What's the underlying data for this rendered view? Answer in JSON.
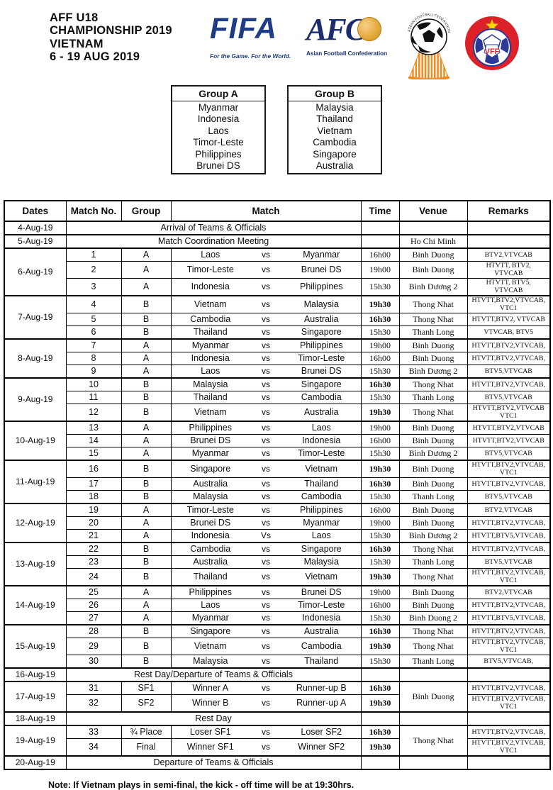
{
  "header": {
    "title_lines": [
      "AFF U18",
      "CHAMPIONSHIP 2019",
      "VIETNAM",
      "6 - 19 AUG 2019"
    ],
    "logos": {
      "fifa": {
        "name": "FIFA",
        "tagline": "For the Game. For the World.",
        "color": "#1d3c85"
      },
      "afc": {
        "name": "AFC",
        "tagline": "Asian Football Confederation",
        "color": "#1b2d6e",
        "gold": "#e3a93c"
      },
      "aff": {
        "arc_text": "ASEAN FOOTBALL FEDERATION",
        "orange": "#ee8a1e"
      },
      "vff": {
        "name": "VFF",
        "red": "#dd2128",
        "blue": "#2b3a97",
        "star": "#ffd400"
      }
    }
  },
  "groups": [
    {
      "title": "Group A",
      "teams": [
        "Myanmar",
        "Indonesia",
        "Laos",
        "Timor-Leste",
        "Philippines",
        "Brunei DS"
      ]
    },
    {
      "title": "Group B",
      "teams": [
        "Malaysia",
        "Thailand",
        "Vietnam",
        "Cambodia",
        "Singapore",
        "Australia"
      ]
    }
  ],
  "table": {
    "headers": [
      "Dates",
      "Match No.",
      "Group",
      "Match",
      "Time",
      "Venue",
      "Remarks"
    ],
    "days": [
      {
        "date": "4-Aug-19",
        "event": "Arrival of Teams & Officials",
        "venue": ""
      },
      {
        "date": "5-Aug-19",
        "event": "Match Coordination Meeting",
        "venue": "Ho Chi Minh"
      },
      {
        "date": "6-Aug-19",
        "matches": [
          {
            "no": "1",
            "group": "A",
            "home": "Laos",
            "vs": "vs",
            "away": "Myanmar",
            "time": "16h00",
            "bold": false,
            "venue": "Binh Duong",
            "remarks": "BTV2,VTVCAB"
          },
          {
            "no": "2",
            "group": "A",
            "home": "Timor-Leste",
            "vs": "vs",
            "away": "Brunei DS",
            "time": "19h00",
            "bold": false,
            "venue": "Binh Duong",
            "remarks": "HTVTT, BTV2,\nVTVCAB"
          },
          {
            "no": "3",
            "group": "A",
            "home": "Indonesia",
            "vs": "vs",
            "away": "Philippines",
            "time": "15h30",
            "bold": false,
            "venue": "Bình Dương 2",
            "remarks": "HTVTT, BTV5,\nVTVCAB"
          }
        ]
      },
      {
        "date": "7-Aug-19",
        "matches": [
          {
            "no": "4",
            "group": "B",
            "home": "Vietnam",
            "vs": "vs",
            "away": "Malaysia",
            "time": "19h30",
            "bold": true,
            "venue": "Thong Nhat",
            "remarks": "HTVTT,BTV2,VTVCAB,\nVTC1"
          },
          {
            "no": "5",
            "group": "B",
            "home": "Cambodia",
            "vs": "vs",
            "away": "Australia",
            "time": "16h30",
            "bold": true,
            "venue": "Thong Nhat",
            "remarks": "HTVTT,BTV2, VTVCAB"
          },
          {
            "no": "6",
            "group": "B",
            "home": "Thailand",
            "vs": "vs",
            "away": "Singapore",
            "time": "15h30",
            "bold": false,
            "venue": "Thanh Long",
            "remarks": "VTVCAB, BTV5"
          }
        ]
      },
      {
        "date": "8-Aug-19",
        "matches": [
          {
            "no": "7",
            "group": "A",
            "home": "Myanmar",
            "vs": "vs",
            "away": "Philippines",
            "time": "19h00",
            "bold": false,
            "venue": "Binh Duong",
            "remarks": "HTVTT,BTV2,VTVCAB,"
          },
          {
            "no": "8",
            "group": "A",
            "home": "Indonesia",
            "vs": "vs",
            "away": "Timor-Leste",
            "time": "16h00",
            "bold": false,
            "venue": "Binh Duong",
            "remarks": "HTVTT,BTV2,VTVCAB,"
          },
          {
            "no": "9",
            "group": "A",
            "home": "Laos",
            "vs": "vs",
            "away": "Brunei DS",
            "time": "15h30",
            "bold": false,
            "venue": "Bình Dương 2",
            "remarks": "BTV5,VTVCAB"
          }
        ]
      },
      {
        "date": "9-Aug-19",
        "matches": [
          {
            "no": "10",
            "group": "B",
            "home": "Malaysia",
            "vs": "vs",
            "away": "Singapore",
            "time": "16h30",
            "bold": true,
            "venue": "Thong Nhat",
            "remarks": "HTVTT,BTV2,VTVCAB,"
          },
          {
            "no": "11",
            "group": "B",
            "home": "Thailand",
            "vs": "vs",
            "away": "Cambodia",
            "time": "15h30",
            "bold": false,
            "venue": "Thanh Long",
            "remarks": "BTV5,VTVCAB"
          },
          {
            "no": "12",
            "group": "B",
            "home": "Vietnam",
            "vs": "vs",
            "away": "Australia",
            "time": "19h30",
            "bold": true,
            "venue": "Thong Nhat",
            "remarks": "HTVTT,BTV2,VTVCAB\nVTC1"
          }
        ]
      },
      {
        "date": "10-Aug-19",
        "matches": [
          {
            "no": "13",
            "group": "A",
            "home": "Philippines",
            "vs": "vs",
            "away": "Laos",
            "time": "19h00",
            "bold": false,
            "venue": "Binh Duong",
            "remarks": "HTVTT,BTV2,VTVCAB"
          },
          {
            "no": "14",
            "group": "A",
            "home": "Brunei DS",
            "vs": "vs",
            "away": "Indonesia",
            "time": "16h00",
            "bold": false,
            "venue": "Binh Duong",
            "remarks": "HTVTT,BTV2,VTVCAB"
          },
          {
            "no": "15",
            "group": "A",
            "home": "Myanmar",
            "vs": "vs",
            "away": "Timor-Leste",
            "time": "15h30",
            "bold": false,
            "venue": "Bình Dương 2",
            "remarks": "BTV5,VTVCAB"
          }
        ]
      },
      {
        "date": "11-Aug-19",
        "matches": [
          {
            "no": "16",
            "group": "B",
            "home": "Singapore",
            "vs": "vs",
            "away": "Vietnam",
            "time": "19h30",
            "bold": true,
            "venue": "Binh Duong",
            "remarks": "HTVTT,BTV2,VTVCAB,\nVTC1"
          },
          {
            "no": "17",
            "group": "B",
            "home": "Australia",
            "vs": "vs",
            "away": "Thailand",
            "time": "16h30",
            "bold": true,
            "venue": "Binh Duong",
            "remarks": "HTVTT,BTV2,VTVCAB,"
          },
          {
            "no": "18",
            "group": "B",
            "home": "Malaysia",
            "vs": "vs",
            "away": "Cambodia",
            "time": "15h30",
            "bold": false,
            "venue": "Thanh Long",
            "remarks": "BTV5,VTVCAB"
          }
        ]
      },
      {
        "date": "12-Aug-19",
        "matches": [
          {
            "no": "19",
            "group": "A",
            "home": "Timor-Leste",
            "vs": "vs",
            "away": "Philippines",
            "time": "16h00",
            "bold": false,
            "venue": "Binh Duong",
            "remarks": "BTV2,VTVCAB"
          },
          {
            "no": "20",
            "group": "A",
            "home": "Brunei DS",
            "vs": "vs",
            "away": "Myanmar",
            "time": "19h00",
            "bold": false,
            "venue": "Binh Duong",
            "remarks": "HTVTT,BTV2,VTVCAB,"
          },
          {
            "no": "21",
            "group": "A",
            "home": "Indonesia",
            "vs": "Vs",
            "away": "Laos",
            "time": "15h30",
            "bold": false,
            "venue": "Bình Dương 2",
            "remarks": "HTVTT,BTV5,VTVCAB,"
          }
        ]
      },
      {
        "date": "13-Aug-19",
        "matches": [
          {
            "no": "22",
            "group": "B",
            "home": "Cambodia",
            "vs": "vs",
            "away": "Singapore",
            "time": "16h30",
            "bold": true,
            "venue": "Thong Nhat",
            "remarks": "HTVTT,BTV2,VTVCAB,"
          },
          {
            "no": "23",
            "group": "B",
            "home": "Australia",
            "vs": "vs",
            "away": "Malaysia",
            "time": "15h30",
            "bold": false,
            "venue": "Thanh Long",
            "remarks": "BTV5,VTVCAB"
          },
          {
            "no": "24",
            "group": "B",
            "home": "Thailand",
            "vs": "vs",
            "away": "Vietnam",
            "time": "19h30",
            "bold": true,
            "venue": "Thong Nhat",
            "remarks": "HTVTT,BTV2,VTVCAB,\nVTC1"
          }
        ]
      },
      {
        "date": "14-Aug-19",
        "matches": [
          {
            "no": "25",
            "group": "A",
            "home": "Philippines",
            "vs": "vs",
            "away": "Brunei DS",
            "time": "19h00",
            "bold": false,
            "venue": "Binh Duong",
            "remarks": "BTV2,VTVCAB"
          },
          {
            "no": "26",
            "group": "A",
            "home": "Laos",
            "vs": "vs",
            "away": "Timor-Leste",
            "time": "16h00",
            "bold": false,
            "venue": "Binh Duong",
            "remarks": "HTVTT,BTV2,VTVCAB,"
          },
          {
            "no": "27",
            "group": "A",
            "home": "Myanmar",
            "vs": "vs",
            "away": "Indonesia",
            "time": "15h30",
            "bold": false,
            "venue": "Binh Duong 2",
            "remarks": "HTVTT,BTV5,VTVCAB,"
          }
        ]
      },
      {
        "date": "15-Aug-19",
        "matches": [
          {
            "no": "28",
            "group": "B",
            "home": "Singapore",
            "vs": "vs",
            "away": "Australia",
            "time": "16h30",
            "bold": true,
            "venue": "Thong Nhat",
            "remarks": "HTVTT,BTV2,VTVCAB,"
          },
          {
            "no": "29",
            "group": "B",
            "home": "Vietnam",
            "vs": "vs",
            "away": "Cambodia",
            "time": "19h30",
            "bold": true,
            "venue": "Thong Nhat",
            "remarks": "HTVTT,BTV2,VTVCAB,\nVTC1"
          },
          {
            "no": "30",
            "group": "B",
            "home": "Malaysia",
            "vs": "vs",
            "away": "Thailand",
            "time": "15h30",
            "bold": false,
            "venue": "Thanh Long",
            "remarks": "BTV5,VTVCAB,"
          }
        ]
      },
      {
        "date": "16-Aug-19",
        "event": "Rest Day/Departure of Teams & Officials",
        "venue": ""
      },
      {
        "date": "17-Aug-19",
        "matches": [
          {
            "no": "31",
            "group": "SF1",
            "home": "Winner A",
            "vs": "vs",
            "away": "Runner-up B",
            "time": "16h30",
            "bold": true,
            "venue": "Binh Duong",
            "venueSpan": 2,
            "remarks": "HTVTT,BTV2,VTVCAB,"
          },
          {
            "no": "32",
            "group": "SF2",
            "home": "Winner B",
            "vs": "vs",
            "away": "Runner-up A",
            "time": "19h30",
            "bold": true,
            "venue": null,
            "remarks": "HTVTT,BTV2,VTVCAB,\nVTC1"
          }
        ]
      },
      {
        "date": "18-Aug-19",
        "event": "Rest Day",
        "venue": ""
      },
      {
        "date": "19-Aug-19",
        "matches": [
          {
            "no": "33",
            "group": "¾ Place",
            "home": "Loser SF1",
            "vs": "vs",
            "away": "Loser SF2",
            "time": "16h30",
            "bold": true,
            "venue": "Thong Nhat",
            "venueSpan": 2,
            "remarks": "HTVTT,BTV2,VTVCAB,"
          },
          {
            "no": "34",
            "group": "Final",
            "home": "Winner SF1",
            "vs": "vs",
            "away": "Winner SF2",
            "time": "19h30",
            "bold": true,
            "venue": null,
            "remarks": "HTVTT,BTV2,VTVCAB,\nVTC1"
          }
        ]
      },
      {
        "date": "20-Aug-19",
        "event": "Departure of Teams & Officials",
        "venue": ""
      }
    ]
  },
  "note": "Note: If Vietnam plays in semi-final, the kick - off time will be at 19:30hrs."
}
